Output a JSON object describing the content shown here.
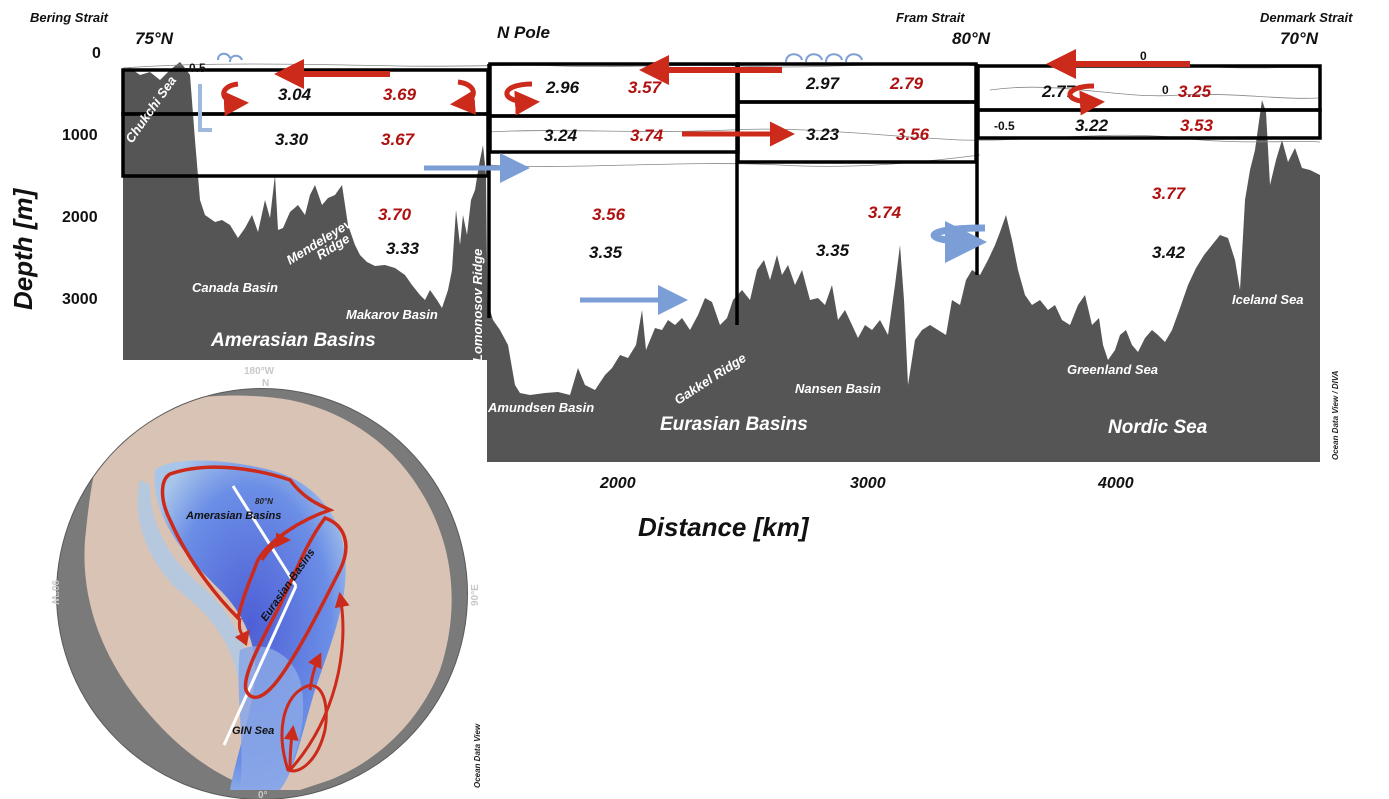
{
  "section": {
    "header_labels": {
      "bering_strait": "Bering Strait",
      "fram_strait": "Fram Strait",
      "denmark_strait": "Denmark Strait",
      "n_pole": "N Pole",
      "lat_75n": "75°N",
      "lat_80n": "80°N",
      "lat_70n": "70°N"
    },
    "axes": {
      "y_title": "Depth  [m]",
      "x_title": "Distance  [km]",
      "y_ticks": [
        "0",
        "1000",
        "2000",
        "3000"
      ],
      "x_ticks": [
        "2000",
        "3000",
        "4000"
      ]
    },
    "isolines": {
      "chukchi": "-0.5",
      "nordic_top": "0",
      "nordic_mid": "0",
      "nordic_left": "-0.5"
    },
    "boxes": {
      "amerasian_upper_black": "3.04",
      "amerasian_upper_red": "3.69",
      "amerasian_mid_black": "3.30",
      "amerasian_mid_red": "3.67",
      "amerasian_deep_red": "3.70",
      "amerasian_deep_black": "3.33",
      "eurasian_w_upper_black": "2.96",
      "eurasian_w_upper_red": "3.57",
      "eurasian_w_mid_black": "3.24",
      "eurasian_w_mid_red": "3.74",
      "eurasian_w_deep_red": "3.56",
      "eurasian_w_deep_black": "3.35",
      "eurasian_e_upper_black": "2.97",
      "eurasian_e_upper_red": "2.79",
      "eurasian_e_mid_black": "3.23",
      "eurasian_e_mid_red": "3.56",
      "eurasian_e_deep_red": "3.74",
      "eurasian_e_deep_black": "3.35",
      "nordic_upper_black": "2.77",
      "nordic_upper_red": "3.25",
      "nordic_mid_black": "3.22",
      "nordic_mid_red": "3.53",
      "nordic_deep_red": "3.77",
      "nordic_deep_black": "3.42"
    },
    "features": {
      "chukchi_sea": "Chukchi Sea",
      "mendeleyev_ridge_1": "Mendeleyev",
      "mendeleyev_ridge_2": "Ridge",
      "canada_basin": "Canada Basin",
      "makarov_basin": "Makarov Basin",
      "lomonosov_ridge": "Lomonosov Ridge",
      "amundsen_basin": "Amundsen Basin",
      "gakkel_ridge": "Gakkel Ridge",
      "nansen_basin": "Nansen Basin",
      "greenland_sea": "Greenland Sea",
      "iceland_sea": "Iceland Sea"
    },
    "regions": {
      "amerasian": "Amerasian Basins",
      "eurasian": "Eurasian Basins",
      "nordic": "Nordic Sea"
    },
    "credit": "Ocean Data View / DIVA"
  },
  "map": {
    "labels": {
      "amerasian": "Amerasian Basins",
      "eurasian": "Eurasian Basins",
      "gin": "GIN Sea",
      "lat_80n": "80°N",
      "coord_180w": "180°W",
      "coord_90w": "90°W",
      "coord_90e": "90°E",
      "coord_0": "0°",
      "coord_n": "N"
    },
    "credit": "Ocean Data View"
  },
  "colors": {
    "bathymetry": "#555555",
    "box_outline": "#000000",
    "atlantic_flow": "#cc2a1a",
    "deep_flow": "#7c9ed6",
    "value_red": "#b01010",
    "map_land": "#d9c3b4",
    "map_deep": "#4f5fd8",
    "map_frame": "#6a6a6a"
  }
}
